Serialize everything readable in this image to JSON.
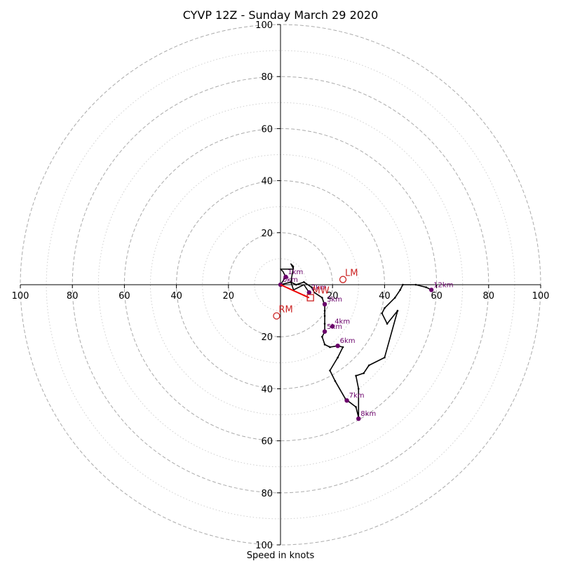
{
  "chart_data": {
    "type": "scatter",
    "title": "CYVP 12Z - Sunday March 29 2020",
    "xlabel": "Speed in knots",
    "ylabel": "",
    "xlim": [
      -100,
      100
    ],
    "ylim": [
      -100,
      100
    ],
    "grid": {
      "major_rings": [
        20,
        40,
        60,
        80,
        100
      ],
      "minor_rings": [
        10,
        30,
        50,
        70,
        90
      ],
      "major_style": "dashed",
      "minor_style": "dotted"
    },
    "axis_ticks": {
      "x": [
        {
          "value": -100,
          "label": "100"
        },
        {
          "value": -80,
          "label": "80"
        },
        {
          "value": -60,
          "label": "60"
        },
        {
          "value": -40,
          "label": "40"
        },
        {
          "value": -20,
          "label": "20"
        },
        {
          "value": 20,
          "label": "20"
        },
        {
          "value": 40,
          "label": "40"
        },
        {
          "value": 60,
          "label": "60"
        },
        {
          "value": 80,
          "label": "80"
        },
        {
          "value": 100,
          "label": "100"
        }
      ],
      "y": [
        {
          "value": 100,
          "label": "100"
        },
        {
          "value": 80,
          "label": "80"
        },
        {
          "value": 60,
          "label": "60"
        },
        {
          "value": 40,
          "label": "40"
        },
        {
          "value": 20,
          "label": "20"
        },
        {
          "value": -20,
          "label": "20"
        },
        {
          "value": -40,
          "label": "40"
        },
        {
          "value": -60,
          "label": "60"
        },
        {
          "value": -80,
          "label": "80"
        },
        {
          "value": -100,
          "label": "100"
        }
      ]
    },
    "hodograph": [
      [
        0,
        0
      ],
      [
        4,
        1
      ],
      [
        6,
        0
      ],
      [
        9,
        1
      ],
      [
        12,
        -1
      ],
      [
        13,
        -3
      ],
      [
        16,
        -5
      ],
      [
        17,
        -8
      ],
      [
        17,
        -10
      ],
      [
        17,
        -12
      ],
      [
        17,
        -15
      ],
      [
        17,
        -18
      ],
      [
        16,
        -20
      ],
      [
        17,
        -23
      ],
      [
        19,
        -24
      ],
      [
        22,
        -23.5
      ],
      [
        24,
        -24
      ],
      [
        22,
        -28
      ],
      [
        19,
        -33
      ],
      [
        21,
        -37
      ],
      [
        25,
        -44
      ],
      [
        29,
        -47
      ],
      [
        30,
        -51
      ],
      [
        30,
        -40
      ],
      [
        29,
        -35
      ],
      [
        32,
        -34
      ],
      [
        34,
        -31
      ],
      [
        40,
        -28
      ],
      [
        45,
        -10
      ],
      [
        41,
        -15
      ],
      [
        39,
        -11
      ],
      [
        40,
        -9
      ],
      [
        44,
        -5
      ],
      [
        46,
        -2
      ],
      [
        47,
        0
      ],
      [
        52,
        0
      ],
      [
        56,
        -1
      ],
      [
        58,
        -2
      ]
    ],
    "low_level_trace": [
      [
        0,
        0
      ],
      [
        2,
        3
      ],
      [
        1,
        5
      ],
      [
        0,
        6
      ],
      [
        4,
        6
      ],
      [
        5,
        6
      ],
      [
        4,
        8
      ],
      [
        5,
        7
      ],
      [
        4,
        1
      ],
      [
        5,
        -2
      ],
      [
        7,
        -1
      ],
      [
        9,
        0
      ],
      [
        11,
        -3
      ]
    ],
    "height_markers": [
      {
        "label": "0km",
        "x": 0,
        "y": 0
      },
      {
        "label": "1km",
        "x": 2,
        "y": 3
      },
      {
        "label": "2km",
        "x": 11,
        "y": -3
      },
      {
        "label": "3km",
        "x": 17,
        "y": -7.5
      },
      {
        "label": "4km",
        "x": 20,
        "y": -16
      },
      {
        "label": "5km",
        "x": 17,
        "y": -18
      },
      {
        "label": "6km",
        "x": 22,
        "y": -23.5
      },
      {
        "label": "7km",
        "x": 25.5,
        "y": -44.5
      },
      {
        "label": "8km",
        "x": 30,
        "y": -51.5
      },
      {
        "label": "12km",
        "x": 58,
        "y": -2
      }
    ],
    "storm_motion": {
      "bunkers_right": {
        "label": "RM",
        "x": -1.5,
        "y": -12
      },
      "bunkers_left": {
        "label": "LM",
        "x": 24,
        "y": 2
      },
      "mean_wind": {
        "label": "MW",
        "x": 11.5,
        "y": -5
      },
      "shear_vector_end": {
        "x": 11,
        "y": -5
      }
    },
    "colors": {
      "hodograph": "#000000",
      "markers": "#6a006a",
      "storm_motion": "#cc2222",
      "shear_vector": "#ee0000",
      "grid": "#aaaaaa"
    }
  }
}
